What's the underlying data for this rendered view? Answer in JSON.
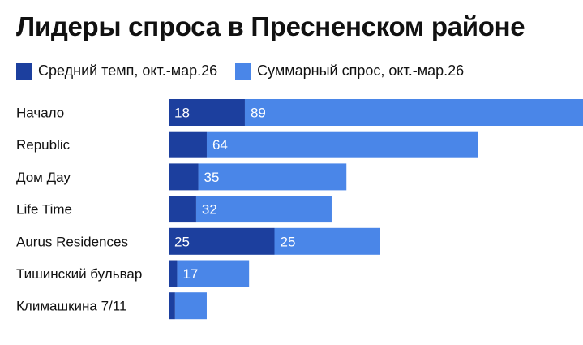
{
  "chart_data": {
    "type": "bar",
    "orientation": "horizontal",
    "stacked": true,
    "title": "Лидеры спроса в Пресненском районе",
    "categories": [
      "Начало",
      "Republic",
      "Дом Дау",
      "Life Time",
      "Aurus Residences",
      "Тишинский бульвар",
      "Климашкина 7/11"
    ],
    "series": [
      {
        "name": "Средний темп, окт.-мар.26",
        "color": "#1c3f9e",
        "values": [
          18,
          9,
          7,
          6.5,
          25,
          2,
          1.5
        ],
        "labels": [
          "18",
          "",
          "",
          "",
          "25",
          "",
          ""
        ]
      },
      {
        "name": "Суммарный спрос, окт.-мар.26",
        "color": "#4a86e8",
        "values": [
          89,
          64,
          35,
          32,
          25,
          17,
          7.5
        ],
        "labels": [
          "89",
          "64",
          "35",
          "32",
          "25",
          "17",
          ""
        ]
      }
    ],
    "legend_position": "top-left",
    "grid": false
  }
}
